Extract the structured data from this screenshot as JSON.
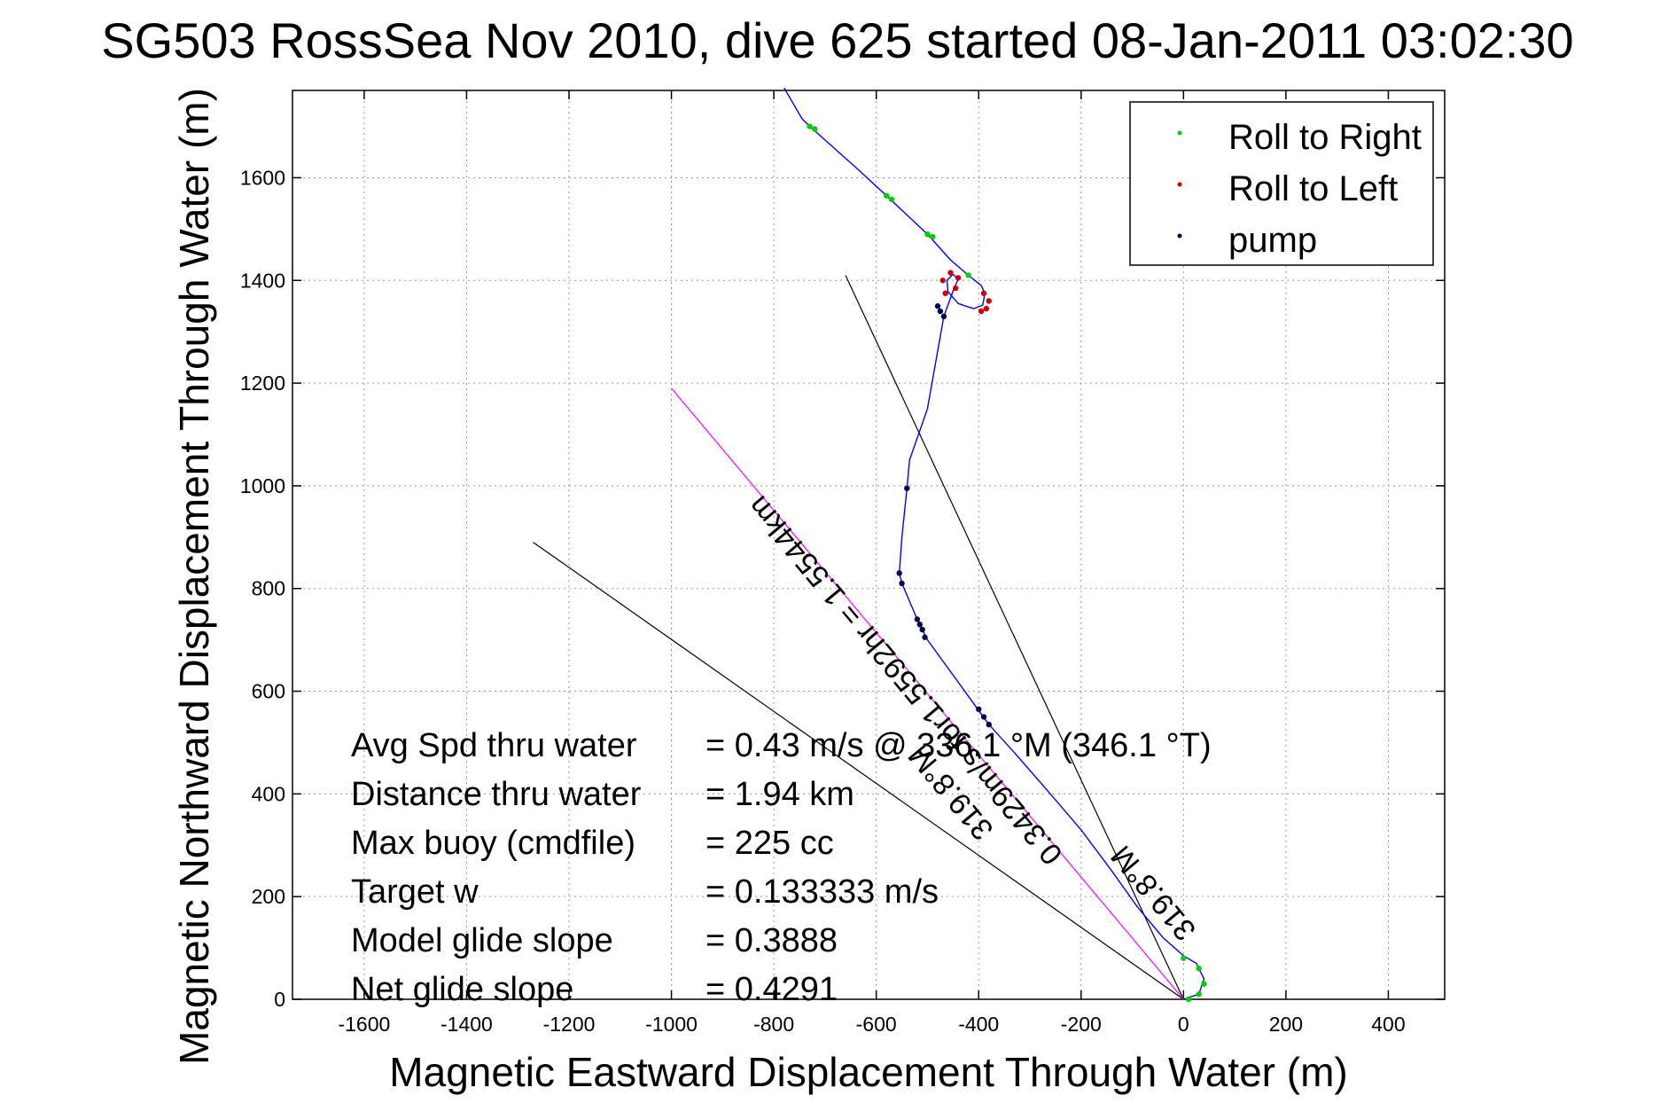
{
  "chart_data": {
    "type": "line",
    "title": "SG503 RossSea Nov 2010, dive 625 started 08-Jan-2011 03:02:30",
    "xlabel": "Magnetic Eastward Displacement Through Water (m)",
    "ylabel": "Magnetic Northward Displacement Through Water (m)",
    "xlim": [
      -1740,
      510
    ],
    "ylim": [
      0,
      1770
    ],
    "xticks": [
      -1600,
      -1400,
      -1200,
      -1000,
      -800,
      -600,
      -400,
      -200,
      0,
      200,
      400
    ],
    "yticks": [
      0,
      200,
      400,
      600,
      800,
      1000,
      1200,
      1400,
      1600
    ],
    "grid": true,
    "legend_position": "top-right",
    "colors": {
      "track": "#0000ff",
      "roll_right": "#00cc00",
      "roll_left": "#cc0000",
      "pump": "#00004d",
      "glide_line": "#ff00ff",
      "sector_line": "#000000",
      "grid": "#999999"
    },
    "series": [
      {
        "name": "Roll to Right",
        "color": "#00cc00",
        "points": [
          [
            -730,
            1700
          ],
          [
            -720,
            1695
          ],
          [
            -580,
            1565
          ],
          [
            -570,
            1558
          ],
          [
            -500,
            1490
          ],
          [
            -490,
            1485
          ],
          [
            -420,
            1410
          ],
          [
            0,
            80
          ],
          [
            30,
            60
          ],
          [
            40,
            30
          ],
          [
            30,
            10
          ],
          [
            10,
            0
          ]
        ]
      },
      {
        "name": "Roll to Left",
        "color": "#cc0000",
        "points": [
          [
            -470,
            1400
          ],
          [
            -455,
            1415
          ],
          [
            -440,
            1405
          ],
          [
            -445,
            1385
          ],
          [
            -465,
            1375
          ],
          [
            -390,
            1375
          ],
          [
            -380,
            1360
          ],
          [
            -385,
            1345
          ],
          [
            -395,
            1340
          ]
        ]
      },
      {
        "name": "pump",
        "color": "#00004d",
        "points": [
          [
            -480,
            1350
          ],
          [
            -475,
            1340
          ],
          [
            -468,
            1330
          ],
          [
            -540,
            995
          ],
          [
            -555,
            830
          ],
          [
            -550,
            810
          ],
          [
            -520,
            740
          ],
          [
            -515,
            730
          ],
          [
            -510,
            720
          ],
          [
            -505,
            705
          ],
          [
            -400,
            565
          ],
          [
            -390,
            550
          ],
          [
            -380,
            535
          ]
        ]
      }
    ],
    "track": [
      [
        -780,
        1775
      ],
      [
        -745,
        1715
      ],
      [
        -730,
        1700
      ],
      [
        -640,
        1620
      ],
      [
        -580,
        1565
      ],
      [
        -500,
        1490
      ],
      [
        -455,
        1440
      ],
      [
        -420,
        1410
      ],
      [
        -395,
        1390
      ],
      [
        -388,
        1375
      ],
      [
        -392,
        1352
      ],
      [
        -410,
        1345
      ],
      [
        -440,
        1355
      ],
      [
        -460,
        1378
      ],
      [
        -462,
        1400
      ],
      [
        -450,
        1412
      ],
      [
        -440,
        1402
      ],
      [
        -448,
        1385
      ],
      [
        -468,
        1330
      ],
      [
        -500,
        1150
      ],
      [
        -535,
        1050
      ],
      [
        -540,
        995
      ],
      [
        -550,
        900
      ],
      [
        -555,
        830
      ],
      [
        -550,
        810
      ],
      [
        -520,
        740
      ],
      [
        -500,
        700
      ],
      [
        -420,
        590
      ],
      [
        -380,
        535
      ],
      [
        -330,
        480
      ],
      [
        -260,
        400
      ],
      [
        -200,
        330
      ],
      [
        -140,
        250
      ],
      [
        -90,
        180
      ],
      [
        -40,
        120
      ],
      [
        0,
        85
      ],
      [
        25,
        70
      ],
      [
        40,
        40
      ],
      [
        30,
        10
      ],
      [
        0,
        0
      ]
    ],
    "glide_line": [
      [
        -1000,
        1190
      ],
      [
        0,
        0
      ]
    ],
    "sector_lines": [
      [
        [
          0,
          0
        ],
        [
          -1270,
          890
        ]
      ],
      [
        [
          0,
          0
        ],
        [
          -660,
          1410
        ]
      ]
    ],
    "legend": [
      "Roll to Right",
      "Roll to Left",
      "pump"
    ],
    "annotations": [
      "0.3429m/s for1.5592hr = 1.5544km",
      "319.8°M",
      "319.8°M"
    ],
    "stats": [
      {
        "label": "Avg Spd thru water",
        "value": "=  0.43 m/s @  336.1 °M (346.1 °T)"
      },
      {
        "label": "Distance thru water",
        "value": "=  1.94 km"
      },
      {
        "label": "Max buoy (cmdfile)",
        "value": "= 225 cc"
      },
      {
        "label": "Target w",
        "value": "= 0.133333 m/s"
      },
      {
        "label": "Model glide slope",
        "value": "= 0.3888"
      },
      {
        "label": "Net glide slope",
        "value": "= 0.4291"
      }
    ]
  }
}
